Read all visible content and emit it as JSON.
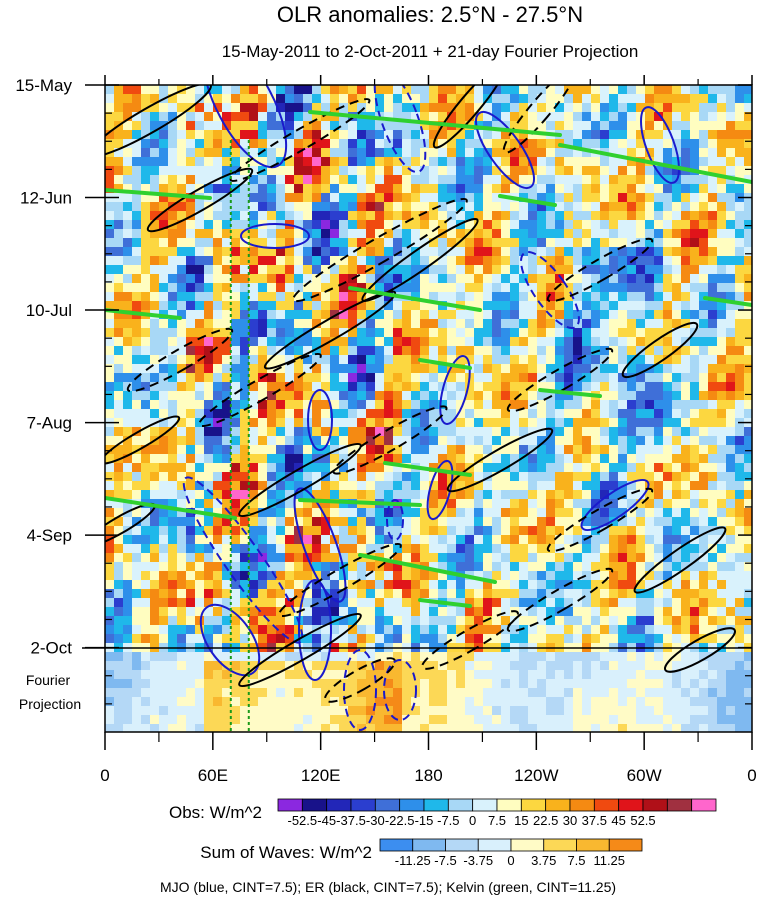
{
  "chart_data": {
    "type": "heatmap",
    "title": "OLR anomalies: 2.5°N - 27.5°N",
    "subtitle": "15-May-2011 to 2-Oct-2011 + 21-day Fourier Projection",
    "y_ticks": [
      "15-May",
      "12-Jun",
      "10-Jul",
      "7-Aug",
      "4-Sep",
      "2-Oct"
    ],
    "y_tick_days": [
      0,
      28,
      56,
      84,
      112,
      140
    ],
    "y_range_days": [
      0,
      161
    ],
    "projection_label_lines": [
      "Fourier",
      "Projection"
    ],
    "x_ticks": [
      "0",
      "60E",
      "120E",
      "180",
      "120W",
      "60W",
      "0"
    ],
    "x_tick_lon": [
      0,
      60,
      120,
      180,
      240,
      300,
      360
    ],
    "x_range_lon": [
      0,
      360
    ],
    "obs_label": "Obs: W/m^2",
    "obs_levels": [
      "-52.5",
      "-45",
      "-37.5",
      "-30",
      "-22.5",
      "-15",
      "-7.5",
      "0",
      "7.5",
      "15",
      "22.5",
      "30",
      "37.5",
      "45",
      "52.5"
    ],
    "obs_colors": [
      "#8b28e0",
      "#18128a",
      "#2226b8",
      "#2b3ecf",
      "#3f6fd8",
      "#2e8fea",
      "#1fb8ea",
      "#a8d8f6",
      "#d9f2fc",
      "#fffdc0",
      "#fcd740",
      "#f9b21c",
      "#f58a12",
      "#f04a10",
      "#e0141a",
      "#b01018",
      "#a03040",
      "#ff66cc"
    ],
    "waves_label": "Sum of Waves: W/m^2",
    "waves_levels": [
      "-11.25",
      "-7.5",
      "-3.75",
      "0",
      "3.75",
      "7.5",
      "11.25"
    ],
    "waves_colors": [
      "#3c8ef0",
      "#7fb9f0",
      "#b4d8f6",
      "#d9f0fc",
      "#fffbc6",
      "#fcd856",
      "#f9b830",
      "#f58a18"
    ],
    "footer": "MJO (blue, CINT=7.5); ER (black, CINT=7.5); Kelvin (green, CINT=11.25)",
    "wave_colors": {
      "mjo": "#1a1acc",
      "er": "#000000",
      "kelvin": "#2fd02f"
    },
    "reference_lines_lon": [
      70,
      80
    ]
  }
}
